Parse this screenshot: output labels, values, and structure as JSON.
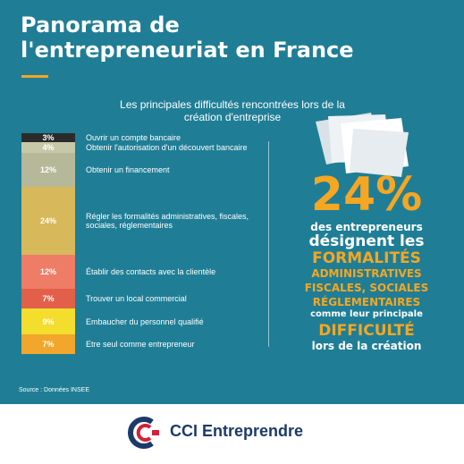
{
  "title_line1": "Panorama de",
  "title_line2": "l'entrepreneuriat en France",
  "subtitle_line1": "Les principales difficultés rencontrées lors de la",
  "subtitle_line2": "création d'entreprise",
  "chart_data": {
    "type": "bar",
    "categories": [
      "Ouvrir un compte bancaire",
      "Obtenir l'autorisation d'un découvert bancaire",
      "Obtenir un financement",
      "Régler les formalités administratives, fiscales, sociales, réglementaires",
      "Établir des contacts avec la clientèle",
      "Trouver un local commercial",
      "Embaucher du personnel qualifié",
      "Etre seul comme entrepreneur"
    ],
    "values": [
      3,
      4,
      12,
      24,
      12,
      7,
      9,
      7
    ],
    "value_labels": [
      "3%",
      "4%",
      "12%",
      "24%",
      "12%",
      "7%",
      "9%",
      "7%"
    ],
    "colors": [
      "#2b2b2b",
      "#c7c8a8",
      "#b6b89a",
      "#d7b85a",
      "#ee7c67",
      "#e2604a",
      "#f3dd2d",
      "#f2a62b"
    ]
  },
  "stat": {
    "value": "24%",
    "line1": "des entrepreneurs",
    "line2": "désignent les",
    "line3": "FORMALITÉS",
    "line4": "ADMINISTRATIVES",
    "line5": "FISCALES, SOCIALES",
    "line6": "RÉGLEMENTAIRES",
    "line7": "comme leur principale",
    "line8": "DIFFICULTÉ",
    "line9": "lors de la création"
  },
  "source": "Source : Données INSEE",
  "brand": "CCI Entreprendre",
  "colors": {
    "panel": "#1f7e96",
    "accent": "#f5a623",
    "brand": "#1b3a6b",
    "brand_red": "#d51f3a"
  }
}
